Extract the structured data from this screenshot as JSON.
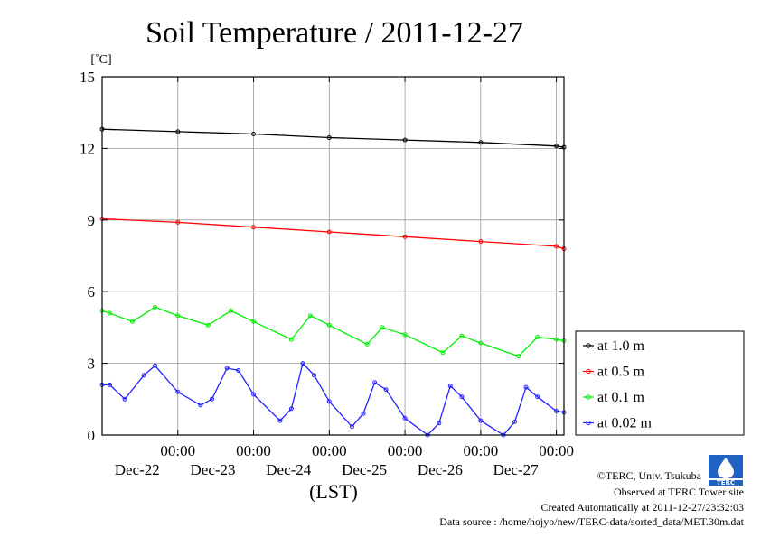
{
  "chart_data": {
    "type": "line",
    "title": "Soil Temperature / 2011-12-27",
    "unit_label": "[˚C]",
    "xlabel": "(LST)",
    "ylim": [
      0,
      15
    ],
    "yticks": [
      0,
      3,
      6,
      9,
      12,
      15
    ],
    "xlim_days": [
      0,
      6.1
    ],
    "xticks": [
      {
        "day": 1,
        "time": "00:00",
        "date": "Dec-22"
      },
      {
        "day": 2,
        "time": "00:00",
        "date": "Dec-23"
      },
      {
        "day": 3,
        "time": "00:00",
        "date": "Dec-24"
      },
      {
        "day": 4,
        "time": "00:00",
        "date": "Dec-25"
      },
      {
        "day": 5,
        "time": "00:00",
        "date": "Dec-26"
      },
      {
        "day": 6,
        "time": "00:00",
        "date": "Dec-27"
      }
    ],
    "grid": true,
    "legend_position": "right",
    "series": [
      {
        "name": "at 1.0 m",
        "color": "#000000",
        "x": [
          0,
          1,
          2,
          3,
          4,
          5,
          6,
          6.1
        ],
        "y": [
          12.8,
          12.7,
          12.6,
          12.45,
          12.35,
          12.25,
          12.1,
          12.05
        ]
      },
      {
        "name": "at 0.5 m",
        "color": "#ff0000",
        "x": [
          0,
          1,
          2,
          3,
          4,
          5,
          6,
          6.1
        ],
        "y": [
          9.05,
          8.9,
          8.7,
          8.5,
          8.3,
          8.1,
          7.9,
          7.8
        ]
      },
      {
        "name": "at 0.1 m",
        "color": "#00ee00",
        "x": [
          0,
          0.1,
          0.4,
          0.7,
          1.0,
          1.4,
          1.7,
          2.0,
          2.5,
          2.75,
          3.0,
          3.5,
          3.7,
          4.0,
          4.5,
          4.75,
          5.0,
          5.5,
          5.75,
          6.0,
          6.1
        ],
        "y": [
          5.2,
          5.1,
          4.75,
          5.35,
          5.0,
          4.6,
          5.2,
          4.75,
          4.0,
          5.0,
          4.6,
          3.8,
          4.5,
          4.2,
          3.45,
          4.15,
          3.85,
          3.3,
          4.1,
          4.0,
          3.95
        ]
      },
      {
        "name": "at 0.02 m",
        "color": "#2222ff",
        "x": [
          0,
          0.1,
          0.3,
          0.55,
          0.7,
          1.0,
          1.3,
          1.45,
          1.65,
          1.8,
          2.0,
          2.35,
          2.5,
          2.65,
          2.8,
          3.0,
          3.3,
          3.45,
          3.6,
          3.75,
          4.0,
          4.3,
          4.45,
          4.6,
          4.75,
          5.0,
          5.3,
          5.45,
          5.6,
          5.75,
          6.0,
          6.1
        ],
        "y": [
          2.1,
          2.1,
          1.5,
          2.5,
          2.9,
          1.8,
          1.25,
          1.5,
          2.8,
          2.7,
          1.7,
          0.6,
          1.1,
          3.0,
          2.5,
          1.4,
          0.35,
          0.9,
          2.2,
          1.9,
          0.7,
          0.0,
          0.5,
          2.05,
          1.6,
          0.6,
          0.0,
          0.55,
          2.0,
          1.6,
          1.0,
          0.95
        ]
      }
    ]
  },
  "logo": {
    "text": "TERC"
  },
  "footer": {
    "copyright": "©TERC, Univ. Tsukuba",
    "site": "Observed at TERC Tower site",
    "created": "Created Automatically at 2011-12-27/23:32:03",
    "source": "Data source : /home/hojyo/new/TERC-data/sorted_data/MET.30m.dat"
  }
}
